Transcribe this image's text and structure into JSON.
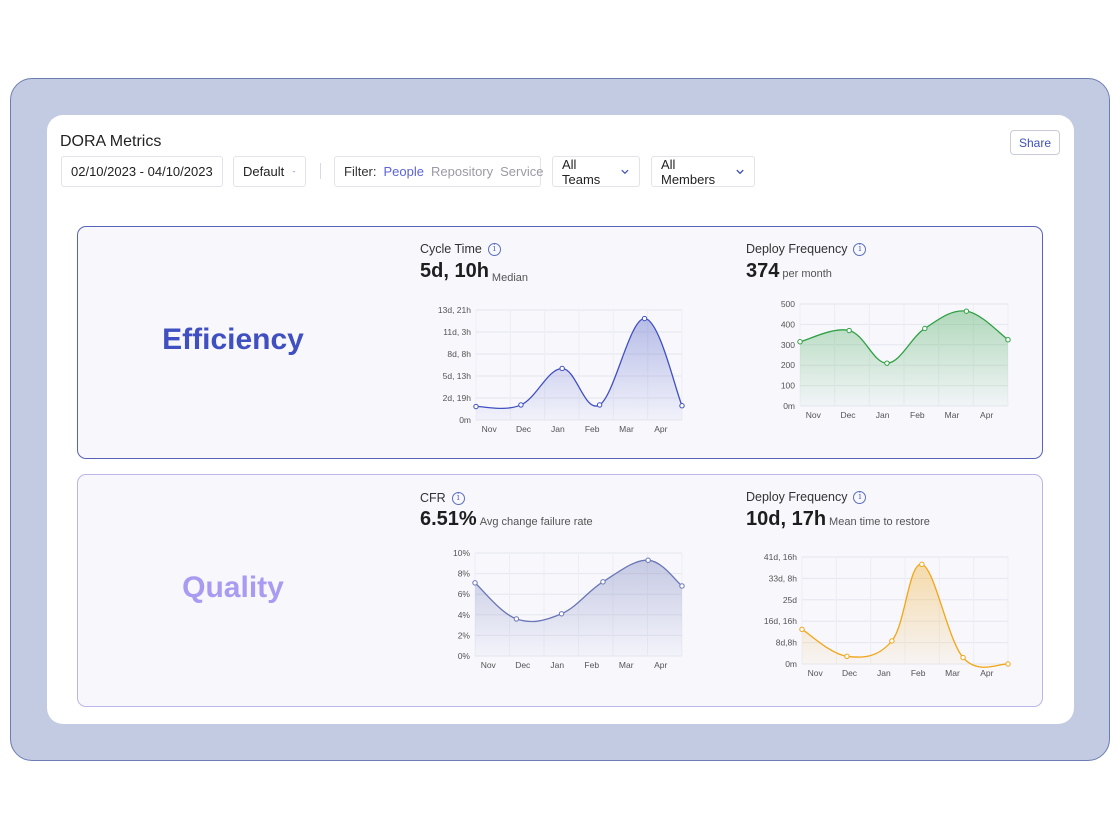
{
  "page": {
    "title": "DORA Metrics",
    "share_label": "Share"
  },
  "controls": {
    "date_range": "02/10/2023 - 04/10/2023",
    "preset": "Default",
    "filter_label": "Filter:",
    "filter_options": [
      "People",
      "Repository",
      "Service"
    ],
    "filter_active": "People",
    "teams": "All Teams",
    "members": "All Members"
  },
  "sections": {
    "efficiency": {
      "label": "Efficiency",
      "color": "#4050c1",
      "metrics": [
        {
          "label": "Cycle Time",
          "value": "5d, 10h",
          "suffix": "Median"
        },
        {
          "label": "Deploy Frequency",
          "value": "374",
          "suffix": "per month"
        }
      ]
    },
    "quality": {
      "label": "Quality",
      "color": "#a99bf2",
      "metrics": [
        {
          "label": "CFR",
          "value": "6.51%",
          "suffix": "Avg change failure rate"
        },
        {
          "label": "Deploy Frequency",
          "value": "10d, 17h",
          "suffix": "Mean time to restore"
        }
      ]
    }
  },
  "chart_data": [
    {
      "type": "area",
      "categories": [
        "Nov",
        "Dec",
        "Jan",
        "Feb",
        "Mar",
        "Apr"
      ],
      "x": [
        0,
        0.5,
        1.5,
        2.5,
        3.5,
        4.5,
        5.5
      ],
      "series": [
        {
          "values": [
            1.7,
            1.9,
            6.5,
            1.9,
            12.8,
            1.8
          ],
          "color": "#4050c1"
        }
      ],
      "x_positions": [
        0,
        1.2,
        2.3,
        3.3,
        4.5,
        5.5
      ],
      "y_ticks": [
        "0m",
        "2d, 19h",
        "5d, 13h",
        "8d, 8h",
        "11d, 3h",
        "13d, 21h"
      ],
      "ylim": [
        0,
        13.875
      ],
      "unit": "days"
    },
    {
      "type": "area",
      "categories": [
        "Nov",
        "Dec",
        "Jan",
        "Feb",
        "Mar",
        "Apr"
      ],
      "series": [
        {
          "values": [
            315,
            370,
            210,
            380,
            465,
            325
          ],
          "color": "#2fa043"
        }
      ],
      "x_positions": [
        0,
        1.3,
        2.3,
        3.3,
        4.4,
        5.5
      ],
      "y_ticks": [
        "0m",
        "100",
        "200",
        "300",
        "400",
        "500"
      ],
      "ylim": [
        0,
        500
      ]
    },
    {
      "type": "area",
      "categories": [
        "Nov",
        "Dec",
        "Jan",
        "Feb",
        "Mar",
        "Apr"
      ],
      "series": [
        {
          "values": [
            7.1,
            3.6,
            4.1,
            7.2,
            9.3,
            6.8
          ],
          "color": "#6a76b6"
        }
      ],
      "x_positions": [
        0,
        1.1,
        2.3,
        3.4,
        4.6,
        5.5
      ],
      "y_ticks": [
        "0%",
        "2%",
        "4%",
        "6%",
        "8%",
        "10%"
      ],
      "ylim": [
        0,
        10
      ],
      "unit": "%"
    },
    {
      "type": "area",
      "categories": [
        "Nov",
        "Dec",
        "Jan",
        "Feb",
        "Mar",
        "Apr"
      ],
      "series": [
        {
          "values": [
            13.5,
            3.0,
            9.0,
            38.8,
            2.5,
            0.0
          ],
          "color": "#f2a516"
        }
      ],
      "x_positions": [
        0,
        1.2,
        2.4,
        3.2,
        4.3,
        5.5
      ],
      "y_ticks": [
        "0m",
        "8d,8h",
        "16d, 16h",
        "25d",
        "33d, 8h",
        "41d, 16h"
      ],
      "ylim": [
        0,
        41.67
      ],
      "unit": "days"
    }
  ]
}
